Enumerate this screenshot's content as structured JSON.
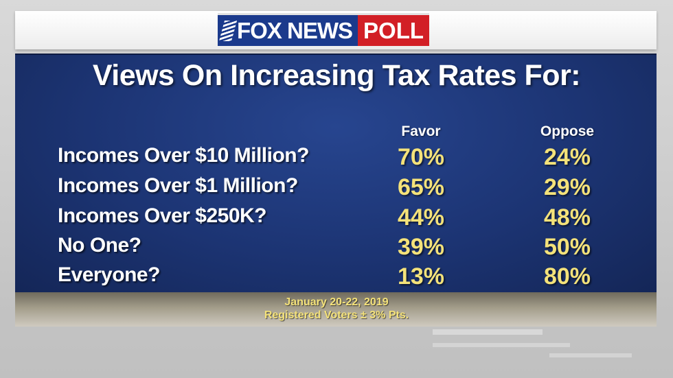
{
  "logo": {
    "brand": "FOX NEWS",
    "suffix": "POLL"
  },
  "chart_data": {
    "type": "table",
    "title": "Views On Increasing Tax Rates For:",
    "columns": [
      "Favor",
      "Oppose"
    ],
    "rows": [
      {
        "label": "Incomes Over $10 Million?",
        "favor": "70%",
        "oppose": "24%"
      },
      {
        "label": "Incomes Over $1 Million?",
        "favor": "65%",
        "oppose": "29%"
      },
      {
        "label": "Incomes Over $250K?",
        "favor": "44%",
        "oppose": "48%"
      },
      {
        "label": "No One?",
        "favor": "39%",
        "oppose": "50%"
      },
      {
        "label": "Everyone?",
        "favor": "13%",
        "oppose": "80%"
      }
    ]
  },
  "footer": {
    "date": "January 20-22, 2019",
    "sample": "Registered Voters ± 3% Pts."
  },
  "colors": {
    "panel": "#1c3473",
    "value": "#f4e27a",
    "brand_blue": "#1b3a8c",
    "brand_red": "#d21f26"
  }
}
